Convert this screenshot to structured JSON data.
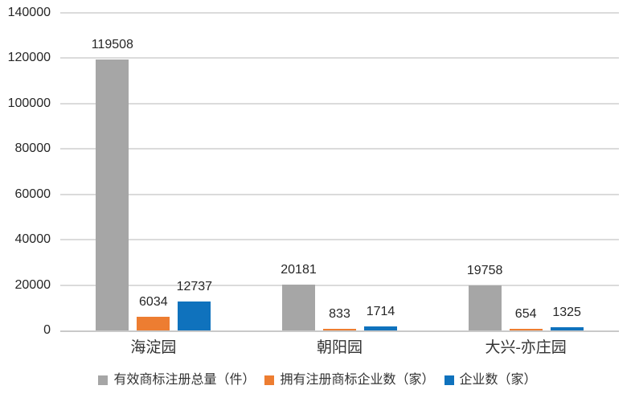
{
  "chart_data": {
    "type": "bar",
    "title": "",
    "xlabel": "",
    "ylabel": "",
    "categories": [
      "海淀园",
      "朝阳园",
      "大兴-亦庄园"
    ],
    "series": [
      {
        "name": "有效商标注册总量（件）",
        "color": "#a6a6a6",
        "values": [
          119508,
          20181,
          19758
        ]
      },
      {
        "name": "拥有注册商标企业数（家）",
        "color": "#ed7d31",
        "values": [
          6034,
          833,
          654
        ]
      },
      {
        "name": "企业数（家）",
        "color": "#0f72bd",
        "values": [
          12737,
          1714,
          1325
        ]
      }
    ],
    "ylim": [
      0,
      140000
    ],
    "yticks": [
      0,
      20000,
      40000,
      60000,
      80000,
      100000,
      120000,
      140000
    ],
    "grid": true,
    "gridline_color": "#dbdbdb",
    "axis_line_color": "#c9c9c9",
    "label_color": "#262626",
    "legend_position": "bottom",
    "data_labels": true
  }
}
